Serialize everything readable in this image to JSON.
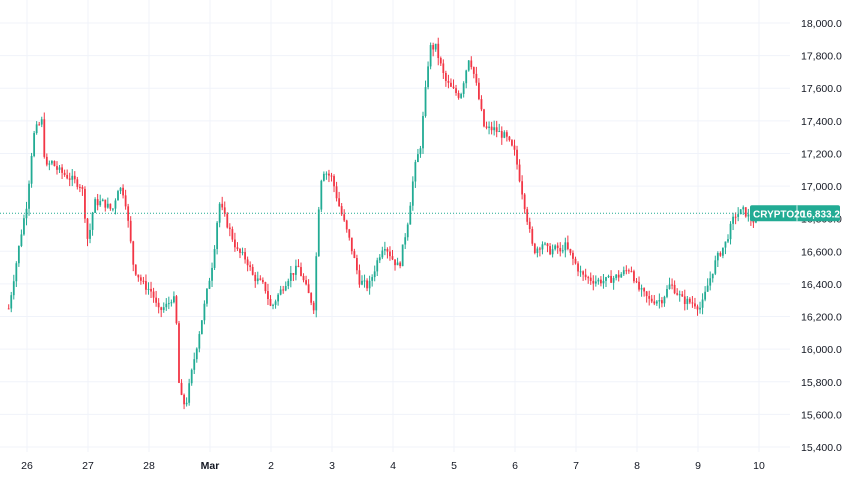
{
  "chart_data": {
    "type": "candlestick",
    "symbol": "CRYPTO20",
    "last_price": 16833.2,
    "last_price_label": "16,833.2",
    "ylim": [
      15300,
      18100
    ],
    "y_ticks": [
      {
        "value": 18000,
        "label": "18,000.0"
      },
      {
        "value": 17800,
        "label": "17,800.0"
      },
      {
        "value": 17600,
        "label": "17,600.0"
      },
      {
        "value": 17400,
        "label": "17,400.0"
      },
      {
        "value": 17200,
        "label": "17,200.0"
      },
      {
        "value": 17000,
        "label": "17,000.0"
      },
      {
        "value": 16800,
        "label": "16,800.0"
      },
      {
        "value": 16600,
        "label": "16,600.0"
      },
      {
        "value": 16400,
        "label": "16,400.0"
      },
      {
        "value": 16200,
        "label": "16,200.0"
      },
      {
        "value": 16000,
        "label": "16,000.0"
      },
      {
        "value": 15800,
        "label": "15,800.0"
      },
      {
        "value": 15600,
        "label": "15,600.0"
      },
      {
        "value": 15400,
        "label": "15,400.0"
      }
    ],
    "x_ticks": [
      {
        "day": 0,
        "label": "26",
        "bold": false
      },
      {
        "day": 1,
        "label": "27",
        "bold": false
      },
      {
        "day": 2,
        "label": "28",
        "bold": false
      },
      {
        "day": 3,
        "label": "Mar",
        "bold": true
      },
      {
        "day": 4,
        "label": "2",
        "bold": false
      },
      {
        "day": 5,
        "label": "3",
        "bold": false
      },
      {
        "day": 6,
        "label": "4",
        "bold": false
      },
      {
        "day": 7,
        "label": "5",
        "bold": false
      },
      {
        "day": 8,
        "label": "6",
        "bold": false
      },
      {
        "day": 9,
        "label": "7",
        "bold": false
      },
      {
        "day": 10,
        "label": "8",
        "bold": false
      },
      {
        "day": 11,
        "label": "9",
        "bold": false
      },
      {
        "day": 12,
        "label": "10",
        "bold": false
      }
    ],
    "x_range_days": [
      -0.3,
      12.0
    ],
    "path_days": [
      -0.3,
      -0.1,
      0.0,
      0.1,
      0.15,
      0.25,
      0.3,
      0.4,
      0.5,
      0.7,
      0.9,
      1.0,
      1.1,
      1.25,
      1.4,
      1.5,
      1.6,
      1.75,
      1.9,
      2.05,
      2.15,
      2.3,
      2.4,
      2.45,
      2.5,
      2.6,
      2.75,
      2.9,
      3.05,
      3.15,
      3.3,
      3.45,
      3.6,
      3.7,
      3.9,
      4.0,
      4.1,
      4.3,
      4.45,
      4.6,
      4.7,
      4.8,
      4.85,
      5.0,
      5.1,
      5.3,
      5.45,
      5.6,
      5.75,
      5.85,
      6.0,
      6.1,
      6.25,
      6.35,
      6.45,
      6.6,
      6.7,
      6.85,
      6.95,
      7.1,
      7.25,
      7.35,
      7.5,
      7.65,
      7.85,
      8.0,
      8.15,
      8.3,
      8.45,
      8.55,
      8.7,
      8.75,
      8.8,
      8.95,
      9.1,
      9.3,
      9.5,
      9.7,
      9.9,
      10.0,
      10.2,
      10.4,
      10.55,
      10.75,
      10.95,
      11.05,
      11.15,
      11.3,
      11.45,
      11.6,
      11.75,
      11.85,
      11.95,
      12.0
    ],
    "path_values": [
      16250,
      16700,
      16900,
      17300,
      17350,
      17400,
      17100,
      17150,
      17100,
      17050,
      17000,
      16650,
      16900,
      16900,
      16850,
      17000,
      16950,
      16500,
      16400,
      16350,
      16230,
      16270,
      16330,
      16150,
      15720,
      15650,
      15960,
      16250,
      16550,
      16900,
      16750,
      16600,
      16550,
      16450,
      16380,
      16250,
      16320,
      16450,
      16500,
      16350,
      16260,
      17000,
      17100,
      17050,
      16900,
      16650,
      16420,
      16380,
      16550,
      16650,
      16550,
      16500,
      16800,
      17100,
      17250,
      17850,
      17850,
      17650,
      17600,
      17550,
      17800,
      17650,
      17350,
      17350,
      17300,
      17200,
      16900,
      16600,
      16650,
      16600,
      16620,
      16580,
      16650,
      16550,
      16450,
      16420,
      16420,
      16450,
      16500,
      16380,
      16300,
      16300,
      16400,
      16300,
      16280,
      16250,
      16380,
      16550,
      16650,
      16820,
      16850,
      16800,
      16780,
      16833
    ]
  }
}
